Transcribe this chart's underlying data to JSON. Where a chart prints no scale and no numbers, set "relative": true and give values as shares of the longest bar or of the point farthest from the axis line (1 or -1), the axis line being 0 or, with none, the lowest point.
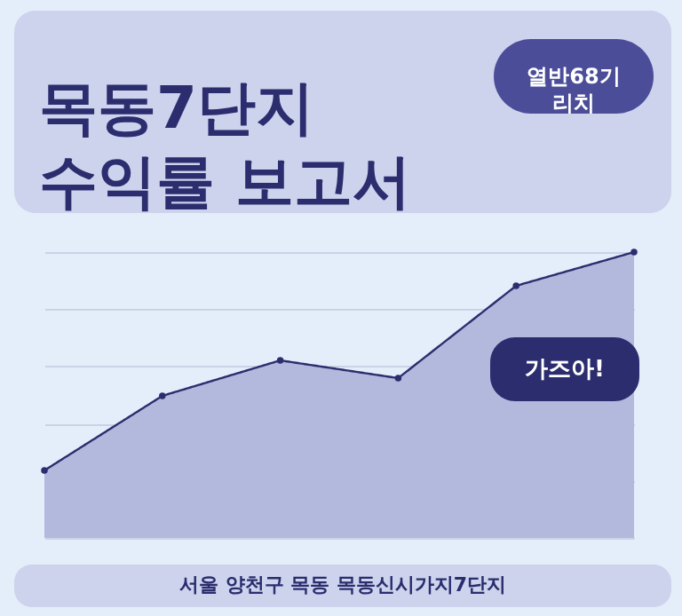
{
  "chart_data": {
    "type": "area",
    "title": "목동7단지\n수익률 보고서",
    "categories": [
      null,
      null,
      null,
      null,
      null,
      null
    ],
    "relative": true,
    "series": [
      {
        "color": "#b3b8dd",
        "values": [
          0.236,
          0.497,
          0.621,
          0.559,
          0.882,
          1.0
        ]
      }
    ],
    "marker": "circle",
    "line_style": "solid",
    "grid": "y",
    "annotations": [
      "열반68기\n리치",
      "가즈아!",
      "서울 양천구 목동 목동신시가지7단지"
    ]
  }
}
